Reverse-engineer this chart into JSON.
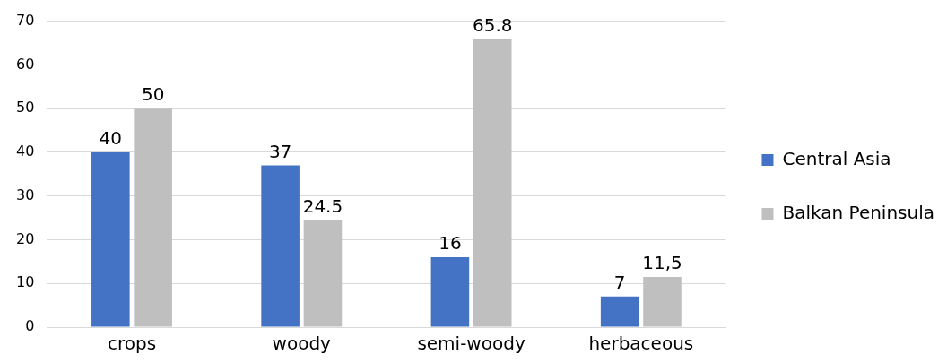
{
  "chart_data": {
    "type": "bar",
    "categories": [
      "crops",
      "woody",
      "semi-woody",
      "herbaceous"
    ],
    "series": [
      {
        "name": "Central Asia",
        "color": "#4472c4",
        "values": [
          40,
          37,
          16,
          7
        ],
        "value_labels": [
          "40",
          "37",
          "16",
          "7"
        ]
      },
      {
        "name": "Balkan Peninsula",
        "color": "#bfbfbf",
        "values": [
          50,
          24.5,
          65.8,
          11.5
        ],
        "value_labels": [
          "50",
          "24.5",
          "65.8",
          "11,5"
        ]
      }
    ],
    "ylim": [
      0,
      70
    ],
    "yticks": [
      0,
      10,
      20,
      30,
      40,
      50,
      60,
      70
    ],
    "grid": "y",
    "legend": "right"
  }
}
